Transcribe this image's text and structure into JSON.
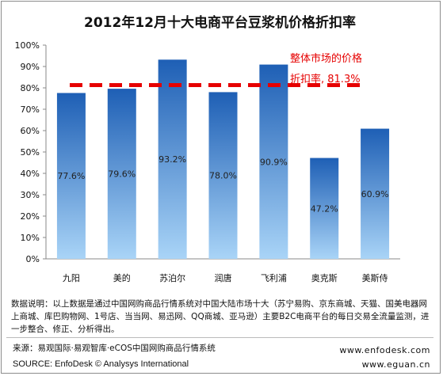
{
  "title": "2012年12月十大电商平台豆浆机价格折扣率",
  "annotation": {
    "line1": "整体市场的价格",
    "line2": "折扣率, 81.3%",
    "color": "#e60000"
  },
  "chart_data": {
    "type": "bar",
    "categories": [
      "九阳",
      "美的",
      "苏泊尔",
      "润唐",
      "飞利浦",
      "奥克斯",
      "美斯侍"
    ],
    "values": [
      77.6,
      79.6,
      93.2,
      78.0,
      90.9,
      47.2,
      60.9
    ],
    "value_labels": [
      "77.6%",
      "79.6%",
      "93.2%",
      "78.0%",
      "90.9%",
      "47.2%",
      "60.9%"
    ],
    "reference_line": 81.3,
    "ylim": [
      0,
      100
    ],
    "yticks": [
      "0%",
      "10%",
      "20%",
      "30%",
      "40%",
      "50%",
      "60%",
      "70%",
      "80%",
      "90%",
      "100%"
    ],
    "bar_color_top": "#1e5fb5",
    "bar_color_bottom": "#a9d4f7",
    "grid": false
  },
  "footer": {
    "note": "数据说明：以上数据是通过中国网购商品行情系统对中国大陆市场十大（苏宁易购、京东商城、天猫、国美电器网上商城、库巴购物网、1号店、当当网、易迅网、QQ商城、亚马逊）主要B2C电商平台的每日交易全流量监测，进一步整合、修正、分析得出。",
    "source_cn": "来源：易观国际·易观智库·eCOS中国网购商品行情系统",
    "site1": "www.enfodesk.com",
    "source_en": "SOURCE: EnfoDesk © Analysys International",
    "site2": "www.eguan.cn"
  }
}
